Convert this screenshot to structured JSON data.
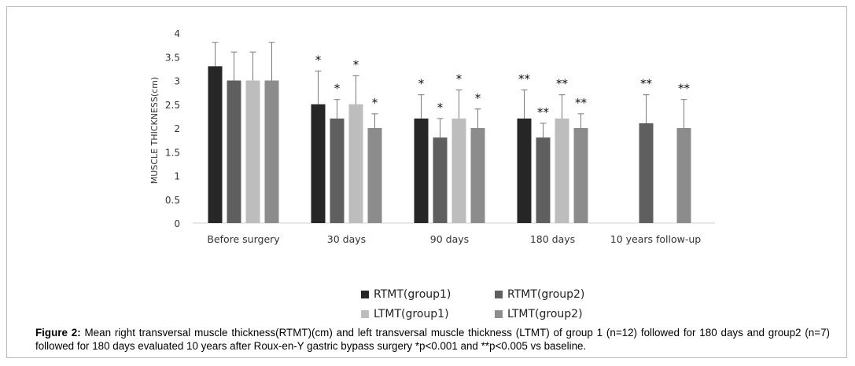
{
  "chart_data": {
    "type": "bar",
    "title": "",
    "xlabel": "",
    "ylabel": "MUSCLE THICKNESS(cm)",
    "ylim": [
      0,
      4
    ],
    "yticks": [
      "0",
      "0.5",
      "1",
      "1.5",
      "2",
      "2.5",
      "3",
      "3.5",
      "4"
    ],
    "grid": false,
    "legend_position": "bottom",
    "categories": [
      "Before surgery",
      "30 days",
      "90 days",
      "180 days",
      "10 years follow-up"
    ],
    "series": [
      {
        "name": "RTMT(group1)",
        "color": "#262626",
        "values": [
          3.3,
          2.5,
          2.2,
          2.2,
          null
        ],
        "errors": [
          0.5,
          0.7,
          0.5,
          0.6,
          null
        ],
        "marks": [
          "",
          "*",
          "*",
          "**",
          ""
        ]
      },
      {
        "name": "RTMT(group2)",
        "color": "#5f5f5f",
        "values": [
          3.0,
          2.2,
          1.8,
          1.8,
          2.1
        ],
        "errors": [
          0.6,
          0.4,
          0.4,
          0.3,
          0.6
        ],
        "marks": [
          "",
          "*",
          "*",
          "**",
          "**"
        ]
      },
      {
        "name": "LTMT(group1)",
        "color": "#bdbdbd",
        "values": [
          3.0,
          2.5,
          2.2,
          2.2,
          null
        ],
        "errors": [
          0.6,
          0.6,
          0.6,
          0.5,
          null
        ],
        "marks": [
          "",
          "*",
          "*",
          "**",
          ""
        ]
      },
      {
        "name": "LTMT(group2)",
        "color": "#8c8c8c",
        "values": [
          3.0,
          2.0,
          2.0,
          2.0,
          2.0
        ],
        "errors": [
          0.8,
          0.3,
          0.4,
          0.3,
          0.6
        ],
        "marks": [
          "",
          "*",
          "*",
          "**",
          "**"
        ]
      }
    ]
  },
  "caption": {
    "label": "Figure 2:",
    "text": " Mean right transversal muscle  thickness(RTMT)(cm) and left transversal muscle thickness (LTMT) of group 1 (n=12) followed for 180 days and group2 (n=7) followed for 180 days evaluated 10 years after Roux-en-Y gastric bypass surgery *p<0.001  and **p<0.005 vs baseline."
  }
}
